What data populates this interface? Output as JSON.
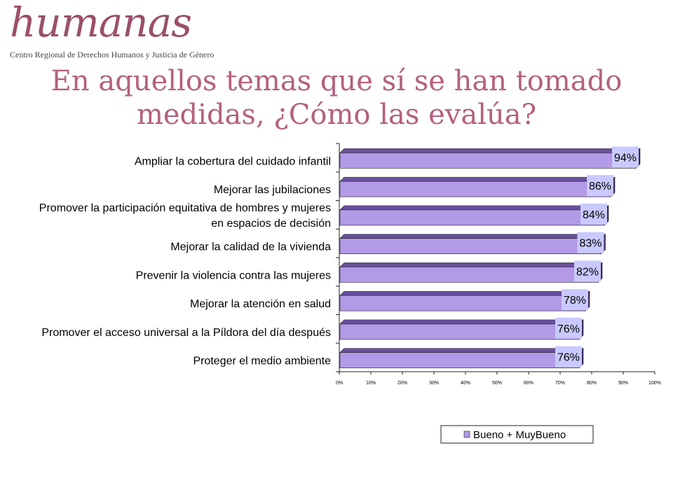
{
  "logo": {
    "word": "humanas",
    "subtitle": "Centro Regional de Derechos Humanos y Justicia de Género"
  },
  "title_line1": "En aquellos temas que sí se han tomado",
  "title_line2": "medidas, ¿Cómo las evalúa?",
  "colors": {
    "bar": "#b39ae6",
    "bar_top": "#6a4fa0",
    "bar_side": "#3e2c66",
    "label_box": "#c9c9ff",
    "title": "#b5607e"
  },
  "chart_data": {
    "type": "bar",
    "orientation": "horizontal",
    "categories": [
      [
        "Ampliar la cobertura del cuidado infantil"
      ],
      [
        "Mejorar las jubilaciones"
      ],
      [
        "Promover la participación equitativa de hombres y mujeres",
        "en espacios de decisión"
      ],
      [
        "Mejorar la calidad de la vivienda"
      ],
      [
        "Prevenir la violencia contra las mujeres"
      ],
      [
        "Mejorar la atención en salud"
      ],
      [
        "Promover el acceso universal a la Píldora del día después"
      ],
      [
        "Proteger el medio ambiente"
      ]
    ],
    "series": [
      {
        "name": "Bueno + MuyBueno",
        "values": [
          94,
          86,
          84,
          83,
          82,
          78,
          76,
          76
        ]
      }
    ],
    "data_labels": [
      "94%",
      "86%",
      "84%",
      "83%",
      "82%",
      "78%",
      "76%",
      "76%"
    ],
    "xlim": [
      0,
      100
    ],
    "xticks": [
      "0%",
      "10%",
      "20%",
      "30%",
      "40%",
      "50%",
      "60%",
      "70%",
      "80%",
      "90%",
      "100%"
    ],
    "grid": false,
    "legend": "bottom-right"
  }
}
